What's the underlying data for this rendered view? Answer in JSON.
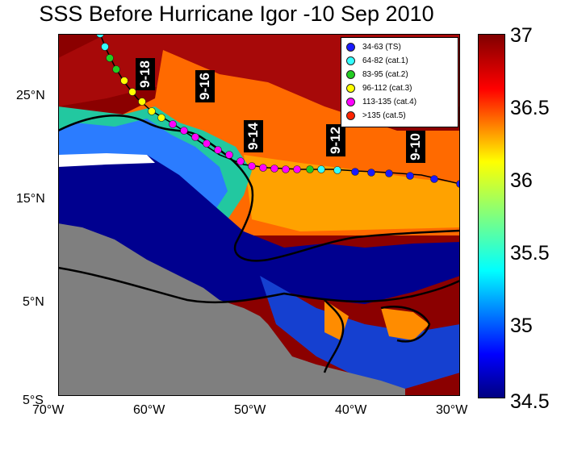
{
  "title": "SSS Before Hurricane Igor -10 Sep 2010",
  "lon_ticks": [
    "70°W",
    "60°W",
    "50°W",
    "40°W",
    "30°W"
  ],
  "lat_ticks": [
    "25°N",
    "15°N",
    "5°N",
    "5°S"
  ],
  "colorbar": {
    "ticks": [
      "37",
      "36.5",
      "36",
      "35.5",
      "35",
      "34.5"
    ],
    "min": 34.5,
    "max": 37
  },
  "legend": [
    {
      "label": "34-63 (TS)",
      "color": "#1a1aff"
    },
    {
      "label": "64-82 (cat.1)",
      "color": "#33ffff"
    },
    {
      "label": "83-95 (cat.2)",
      "color": "#22cc22"
    },
    {
      "label": "96-112 (cat.3)",
      "color": "#ffff00"
    },
    {
      "label": "113-135 (cat.4)",
      "color": "#ff00ff"
    },
    {
      "label": ">135 (cat.5)",
      "color": "#ff2200"
    }
  ],
  "date_labels": [
    "9-18",
    "9-16",
    "9-14",
    "9-12",
    "9-10"
  ],
  "colors": {
    "land": "#7f7f7f",
    "fresh": "#00008f",
    "salty": "#7f0000"
  }
}
